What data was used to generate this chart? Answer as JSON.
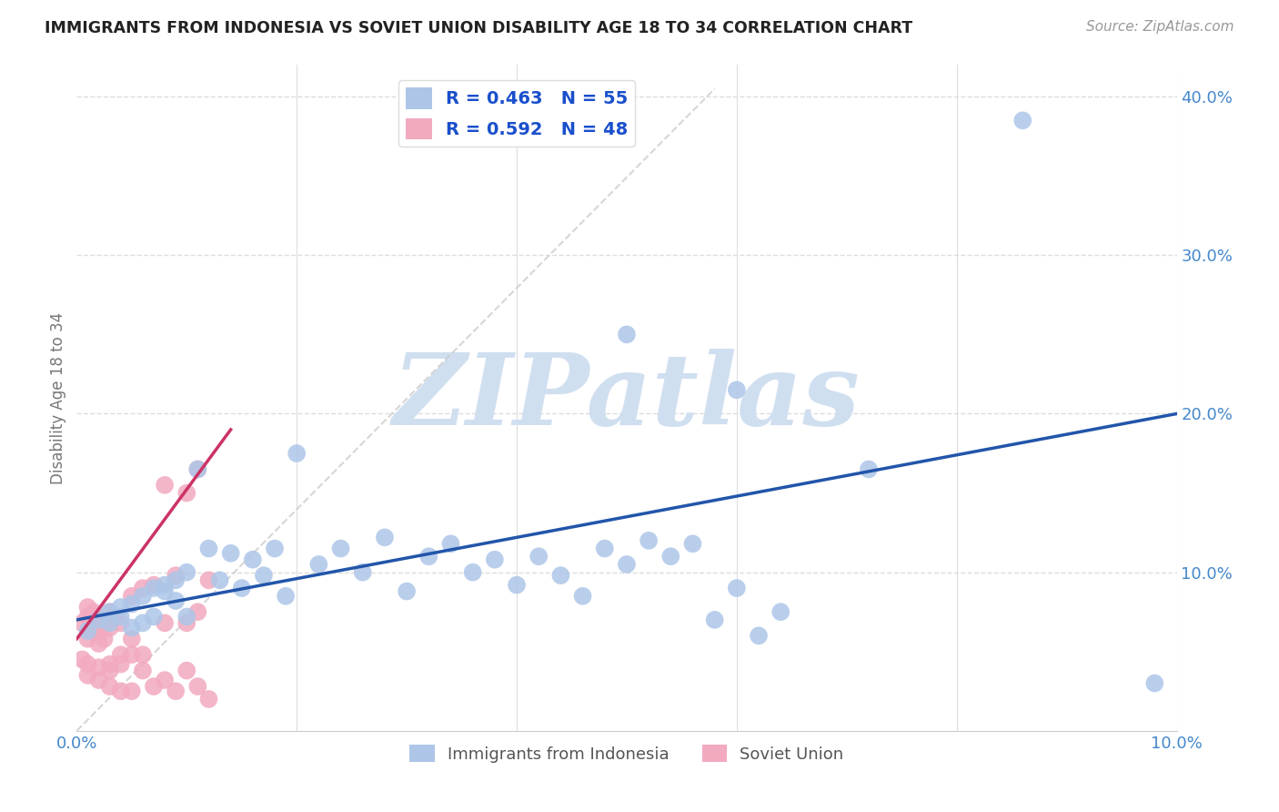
{
  "title": "IMMIGRANTS FROM INDONESIA VS SOVIET UNION DISABILITY AGE 18 TO 34 CORRELATION CHART",
  "source": "Source: ZipAtlas.com",
  "ylabel": "Disability Age 18 to 34",
  "xlim": [
    0.0,
    0.1
  ],
  "ylim": [
    0.0,
    0.42
  ],
  "indonesia_R": 0.463,
  "indonesia_N": 55,
  "soviet_R": 0.592,
  "soviet_N": 48,
  "indonesia_color": "#adc6e8",
  "indonesia_line_color": "#2255aa",
  "soviet_color": "#f2aabf",
  "soviet_line_color": "#cc3366",
  "legend_r_color": "#1a4fcc",
  "watermark_color": "#d0dff0",
  "background_color": "#ffffff",
  "grid_color": "#dddddd",
  "indonesia_x": [
    0.001,
    0.002,
    0.003,
    0.003,
    0.004,
    0.004,
    0.005,
    0.005,
    0.006,
    0.006,
    0.007,
    0.007,
    0.008,
    0.008,
    0.009,
    0.009,
    0.01,
    0.01,
    0.011,
    0.012,
    0.013,
    0.014,
    0.015,
    0.016,
    0.017,
    0.018,
    0.019,
    0.02,
    0.022,
    0.024,
    0.026,
    0.028,
    0.03,
    0.032,
    0.034,
    0.036,
    0.038,
    0.04,
    0.042,
    0.044,
    0.046,
    0.048,
    0.05,
    0.052,
    0.054,
    0.056,
    0.058,
    0.06,
    0.062,
    0.064,
    0.05,
    0.06,
    0.072,
    0.086,
    0.098
  ],
  "indonesia_y": [
    0.063,
    0.07,
    0.068,
    0.075,
    0.072,
    0.078,
    0.065,
    0.08,
    0.068,
    0.085,
    0.09,
    0.072,
    0.088,
    0.092,
    0.082,
    0.095,
    0.072,
    0.1,
    0.165,
    0.115,
    0.095,
    0.112,
    0.09,
    0.108,
    0.098,
    0.115,
    0.085,
    0.175,
    0.105,
    0.115,
    0.1,
    0.122,
    0.088,
    0.11,
    0.118,
    0.1,
    0.108,
    0.092,
    0.11,
    0.098,
    0.085,
    0.115,
    0.105,
    0.12,
    0.11,
    0.118,
    0.07,
    0.09,
    0.06,
    0.075,
    0.25,
    0.215,
    0.165,
    0.385,
    0.03
  ],
  "soviet_x": [
    0.0005,
    0.001,
    0.001,
    0.001,
    0.0015,
    0.0015,
    0.002,
    0.002,
    0.002,
    0.0025,
    0.0025,
    0.003,
    0.003,
    0.003,
    0.0035,
    0.004,
    0.004,
    0.005,
    0.005,
    0.006,
    0.006,
    0.007,
    0.008,
    0.008,
    0.009,
    0.01,
    0.01,
    0.011,
    0.011,
    0.012,
    0.0005,
    0.001,
    0.001,
    0.002,
    0.002,
    0.003,
    0.003,
    0.004,
    0.004,
    0.005,
    0.005,
    0.006,
    0.007,
    0.008,
    0.009,
    0.01,
    0.011,
    0.012
  ],
  "soviet_y": [
    0.068,
    0.072,
    0.078,
    0.058,
    0.075,
    0.065,
    0.07,
    0.062,
    0.055,
    0.068,
    0.058,
    0.075,
    0.065,
    0.042,
    0.072,
    0.068,
    0.048,
    0.085,
    0.058,
    0.09,
    0.048,
    0.092,
    0.155,
    0.068,
    0.098,
    0.15,
    0.068,
    0.165,
    0.075,
    0.095,
    0.045,
    0.042,
    0.035,
    0.04,
    0.032,
    0.038,
    0.028,
    0.025,
    0.042,
    0.048,
    0.025,
    0.038,
    0.028,
    0.032,
    0.025,
    0.038,
    0.028,
    0.02
  ],
  "ind_line_x0": 0.0,
  "ind_line_y0": 0.07,
  "ind_line_x1": 0.1,
  "ind_line_y1": 0.2,
  "sov_line_x0": 0.0,
  "sov_line_y0": 0.058,
  "sov_line_x1": 0.014,
  "sov_line_y1": 0.19
}
